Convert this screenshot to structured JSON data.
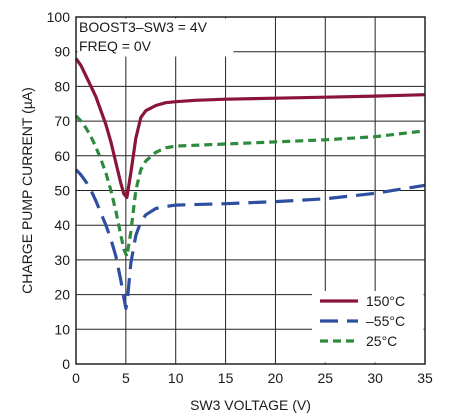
{
  "chart_data": {
    "type": "line",
    "xlabel": "SW3 VOLTAGE (V)",
    "ylabel": "CHARGE PUMP CURRENT (µA)",
    "xlim": [
      0,
      35
    ],
    "ylim": [
      0,
      100
    ],
    "x_ticks": [
      "0",
      "5",
      "10",
      "15",
      "20",
      "25",
      "30",
      "35"
    ],
    "y_ticks": [
      "0",
      "10",
      "20",
      "30",
      "40",
      "50",
      "60",
      "70",
      "80",
      "90",
      "100"
    ],
    "grid": true,
    "annotations": [
      "BOOST3–SW3 = 4V",
      "FREQ = 0V"
    ],
    "legend_position": "bottom-right",
    "series": [
      {
        "name": "150°C",
        "color": "#8a1538",
        "dash": "solid",
        "x": [
          0,
          0.5,
          1,
          1.5,
          2,
          2.5,
          3,
          3.5,
          4,
          4.5,
          4.8,
          5.1,
          5.5,
          6,
          6.5,
          7,
          8,
          9,
          10,
          12,
          15,
          20,
          25,
          30,
          35
        ],
        "y": [
          88,
          86,
          83,
          80,
          77,
          73,
          69,
          64,
          58,
          52,
          49,
          48,
          55,
          65,
          71,
          73,
          74.5,
          75.3,
          75.6,
          76,
          76.3,
          76.6,
          76.9,
          77.2,
          77.6
        ]
      },
      {
        "name": "–55°C",
        "color": "#2e4fa0",
        "dash": "long-dash",
        "x": [
          0,
          0.5,
          1,
          1.5,
          2,
          2.5,
          3,
          3.5,
          4,
          4.5,
          4.8,
          5.0,
          5.2,
          5.5,
          6,
          6.5,
          7,
          8,
          9,
          10,
          15,
          20,
          25,
          30,
          35
        ],
        "y": [
          56,
          54.5,
          52.5,
          50,
          47,
          43.5,
          40,
          36,
          31,
          24,
          19,
          16,
          20,
          29,
          37,
          41,
          43,
          44.8,
          45.4,
          45.8,
          46.2,
          46.8,
          47.6,
          49.2,
          51.5
        ]
      },
      {
        "name": "25°C",
        "color": "#2e8b3d",
        "dash": "short-dash",
        "x": [
          0,
          0.5,
          1,
          1.5,
          2,
          2.5,
          3,
          3.5,
          4,
          4.5,
          4.8,
          5.1,
          5.5,
          6,
          6.5,
          7,
          8,
          9,
          10,
          15,
          20,
          25,
          30,
          35
        ],
        "y": [
          71.5,
          70,
          68,
          65.5,
          62.5,
          59,
          55,
          50,
          44,
          37,
          33,
          31,
          38,
          50,
          56,
          58.5,
          61,
          62.3,
          62.8,
          63.4,
          64,
          64.6,
          65.5,
          67.2
        ]
      }
    ]
  }
}
